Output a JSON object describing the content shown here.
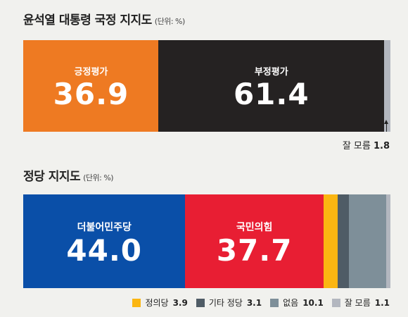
{
  "chart_data": [
    {
      "type": "bar",
      "stacked": true,
      "orientation": "horizontal",
      "title": "윤석열 대통령 국정 지지도",
      "unit_label": "(단위: %)",
      "series": [
        {
          "name": "긍정평가",
          "value": 36.9,
          "value_label": "36.9",
          "color": "#ee7a22"
        },
        {
          "name": "부정평가",
          "value": 61.4,
          "value_label": "61.4",
          "color": "#252222"
        },
        {
          "name": "잘 모름",
          "value": 1.8,
          "value_label": "1.8",
          "color": "#b3b7bf"
        }
      ]
    },
    {
      "type": "bar",
      "stacked": true,
      "orientation": "horizontal",
      "title": "정당 지지도",
      "unit_label": "(단위: %)",
      "series": [
        {
          "name": "더불어민주당",
          "value": 44.0,
          "value_label": "44.0",
          "color": "#0a4fa8"
        },
        {
          "name": "국민의힘",
          "value": 37.7,
          "value_label": "37.7",
          "color": "#e81e33"
        },
        {
          "name": "정의당",
          "value": 3.9,
          "value_label": "3.9",
          "color": "#fbb612"
        },
        {
          "name": "기타 정당",
          "value": 3.1,
          "value_label": "3.1",
          "color": "#4f5c66"
        },
        {
          "name": "없음",
          "value": 10.1,
          "value_label": "10.1",
          "color": "#7e8f99"
        },
        {
          "name": "잘 모름",
          "value": 1.1,
          "value_label": "1.1",
          "color": "#b3b7bf"
        }
      ]
    }
  ]
}
